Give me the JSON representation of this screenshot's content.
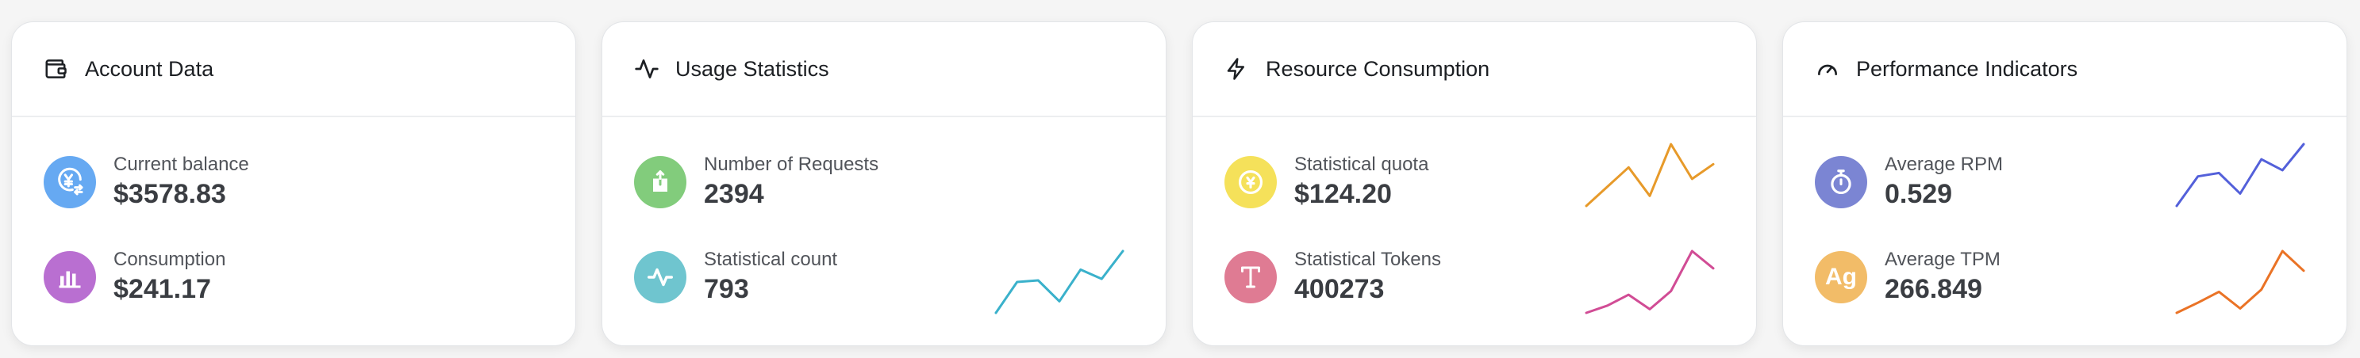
{
  "cards": [
    {
      "title": "Account Data",
      "header_icon": "wallet-icon",
      "rows": [
        {
          "label": "Current balance",
          "value": "$3578.83",
          "icon": "yuan-exchange-icon",
          "color": "#66a9f2"
        },
        {
          "label": "Consumption",
          "value": "$241.17",
          "icon": "bar-chart-icon",
          "color": "#b96fd1"
        }
      ],
      "sparklines": []
    },
    {
      "title": "Usage Statistics",
      "header_icon": "activity-icon",
      "rows": [
        {
          "label": "Number of Requests",
          "value": "2394",
          "icon": "send-icon",
          "color": "#82cc7c"
        },
        {
          "label": "Statistical count",
          "value": "793",
          "icon": "pulse-icon",
          "color": "#6fc5cf"
        }
      ],
      "sparklines": [
        {
          "row": 2,
          "color": "#3ab1cb",
          "values": [
            1,
            5,
            5.2,
            2.5,
            6.6,
            5.4,
            9
          ]
        }
      ]
    },
    {
      "title": "Resource Consumption",
      "header_icon": "lightning-icon",
      "rows": [
        {
          "label": "Statistical quota",
          "value": "$124.20",
          "icon": "coin-icon",
          "color": "#f5e15a"
        },
        {
          "label": "Statistical Tokens",
          "value": "400273",
          "icon": "text-icon",
          "color": "#df7b93"
        }
      ],
      "sparklines": [
        {
          "row": 1,
          "color": "#e79a2a",
          "values": [
            1,
            3.5,
            6,
            2.3,
            9,
            4.5,
            6.4
          ]
        },
        {
          "row": 2,
          "color": "#d14c95",
          "values": [
            1,
            1.8,
            3,
            1.4,
            3.4,
            7.8,
            5.9
          ]
        }
      ]
    },
    {
      "title": "Performance Indicators",
      "header_icon": "speedometer-icon",
      "rows": [
        {
          "label": "Average RPM",
          "value": "0.529",
          "icon": "stopwatch-icon",
          "color": "#7b85d3"
        },
        {
          "label": "Average TPM",
          "value": "266.849",
          "icon": "ag-icon",
          "badge_text": "Ag",
          "color": "#f2bc68"
        }
      ],
      "sparklines": [
        {
          "row": 1,
          "color": "#5360da",
          "values": [
            1,
            5.3,
            5.8,
            2.8,
            7.8,
            6.2,
            10
          ]
        },
        {
          "row": 2,
          "color": "#ea7326",
          "values": [
            1,
            2.4,
            3.9,
            1.6,
            4.2,
            9.5,
            6.8
          ]
        }
      ]
    }
  ]
}
